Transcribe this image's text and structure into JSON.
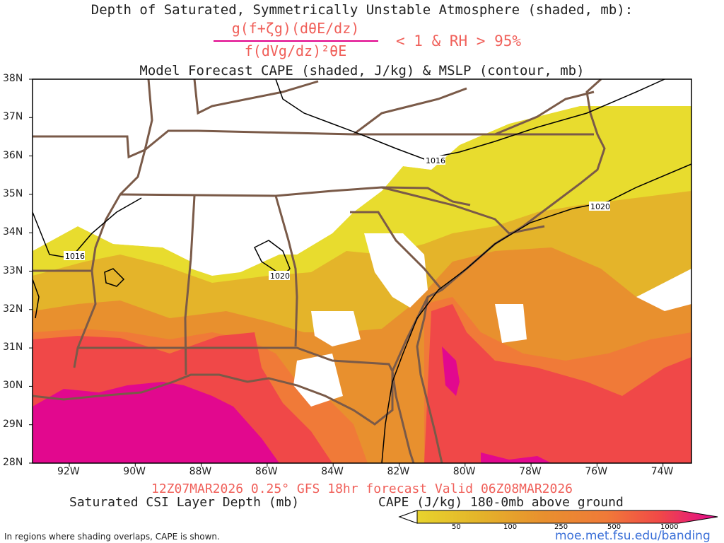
{
  "titles": {
    "line1": "Depth of Saturated, Symmetrically Unstable Atmosphere (shaded, mb):",
    "formula_numerator": "g(f+ζg)(dθE/dz)",
    "formula_denominator": "f(dVg/dz)²θE",
    "formula_condition": "< 1 & RH > 95%",
    "line3": "Model Forecast CAPE (shaded, J/kg) & MSLP (contour, mb)",
    "valid": "12Z07MAR2026 0.25° GFS 18hr forecast Valid 06Z08MAR2026",
    "legend_csi": "Saturated CSI Layer Depth (mb)",
    "legend_cape": "CAPE (J/kg) 180-0mb above ground",
    "footnote": "In regions where shading overlaps, CAPE is shown.",
    "site": "moe.met.fsu.edu/banding"
  },
  "axes": {
    "lat_labels": [
      "38N",
      "37N",
      "36N",
      "35N",
      "34N",
      "33N",
      "32N",
      "31N",
      "30N",
      "29N",
      "28N"
    ],
    "lon_labels": [
      "92W",
      "90W",
      "88W",
      "86W",
      "84W",
      "82W",
      "80W",
      "78W",
      "76W",
      "74W"
    ]
  },
  "colorbar": {
    "ticks": [
      "50",
      "100",
      "250",
      "500",
      "1000"
    ],
    "colors": [
      "#e8dc2e",
      "#e4b42a",
      "#e8902e",
      "#f07a38",
      "#f04848",
      "#e2088e"
    ]
  },
  "cape_colors": {
    "lt50_100": "#e8dc2e",
    "100_250": "#e4b42a",
    "250_500": "#e8902e",
    "500_750": "#f07a38",
    "750_1000": "#f04848",
    "gt1000": "#e2088e"
  },
  "isobars": [
    "1016",
    "1016",
    "1020",
    "1020"
  ],
  "colors": {
    "borders": "#7a5a48",
    "isobar": "#000000"
  }
}
